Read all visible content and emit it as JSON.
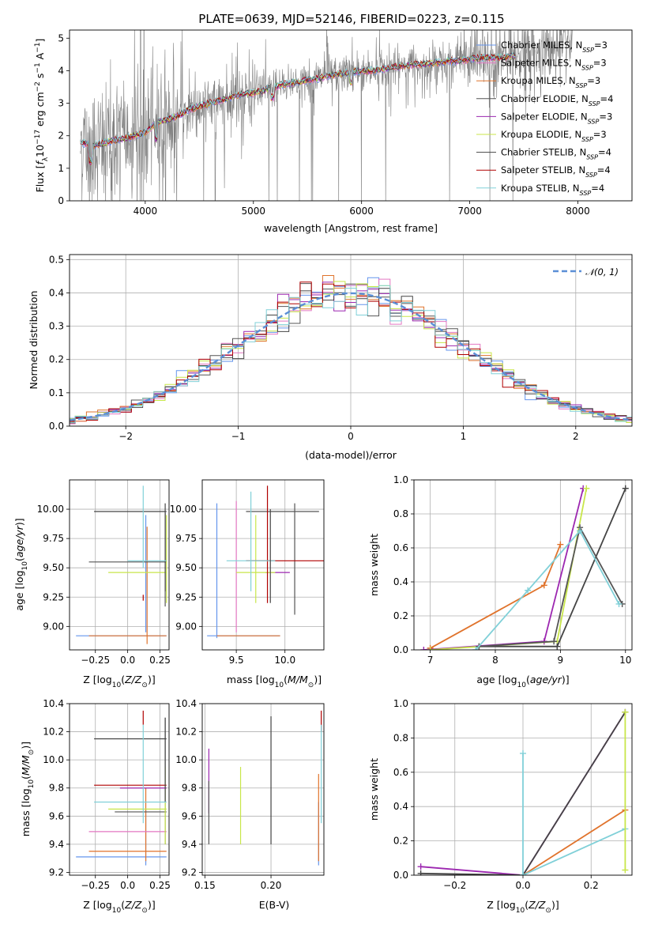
{
  "figure_title": "PLATE=0639, MJD=52146, FIBERID=0223, z=0.115",
  "colors": {
    "chabrier_miles": "#6495ed",
    "salpeter_miles": "#e377c2",
    "kroupa_miles": "#e0732c",
    "chabrier_elodie": "#555555",
    "salpeter_elodie": "#9c27b0",
    "kroupa_elodie": "#c8e64a",
    "chabrier_stelib": "#444444",
    "salpeter_stelib": "#b00000",
    "kroupa_stelib": "#80d0d8",
    "data": "#808080",
    "normal": "#5b8fd6"
  },
  "chart_data": [
    {
      "id": "spectrum",
      "type": "line",
      "title": "PLATE=0639, MJD=52146, FIBERID=0223, z=0.115",
      "xlabel": "wavelength [Angstrom, rest frame]",
      "ylabel": "Flux [f_λ10^-17 erg cm^-2 s^-1 A^-1]",
      "xlim": [
        3300,
        8500
      ],
      "ylim": [
        0,
        5.25
      ],
      "xticks": [
        4000,
        5000,
        6000,
        7000,
        8000
      ],
      "yticks": [
        0,
        1,
        2,
        3,
        4,
        5
      ],
      "legend": [
        "Chabrier MILES, N_SSP=3",
        "Salpeter MILES, N_SSP=3",
        "Kroupa MILES, N_SSP=3",
        "Chabrier ELODIE, N_SSP=4",
        "Salpeter ELODIE, N_SSP=3",
        "Kroupa ELODIE, N_SSP=3",
        "Chabrier STELIB, N_SSP=4",
        "Salpeter STELIB, N_SSP=4",
        "Kroupa STELIB, N_SSP=4"
      ],
      "legend_position": "right",
      "model_continuum": {
        "x": [
          3400,
          3500,
          3600,
          3700,
          3800,
          3900,
          4000,
          4100,
          4200,
          4300,
          4400,
          4500,
          4600,
          4700,
          4800,
          4900,
          5000,
          5100,
          5200,
          5300,
          5400,
          5500,
          5600,
          5700,
          5800,
          5900,
          6000,
          6100,
          6200,
          6300,
          6400,
          6500,
          6600,
          6700,
          6800,
          6900,
          7000,
          7100,
          7200,
          7300,
          7400
        ],
        "y": [
          1.8,
          1.7,
          1.75,
          1.85,
          1.9,
          2.0,
          2.1,
          2.4,
          2.5,
          2.6,
          2.8,
          2.9,
          3.0,
          3.1,
          3.2,
          3.3,
          3.3,
          3.4,
          3.5,
          3.6,
          3.65,
          3.7,
          3.75,
          3.85,
          3.9,
          3.95,
          4.0,
          4.0,
          4.05,
          4.1,
          4.15,
          4.2,
          4.2,
          4.25,
          4.3,
          4.3,
          4.35,
          4.4,
          4.4,
          4.4,
          4.45
        ]
      }
    },
    {
      "id": "residuals",
      "type": "line",
      "xlabel": "(data-model)/error",
      "ylabel": "Normed distribution",
      "xlim": [
        -2.5,
        2.5
      ],
      "ylim": [
        0,
        0.515
      ],
      "xticks": [
        -2,
        -1,
        0,
        1,
        2
      ],
      "yticks": [
        0.0,
        0.1,
        0.2,
        0.3,
        0.4,
        0.5
      ],
      "legend": [
        "𝒩(0, 1)"
      ],
      "legend_position": "upper right",
      "grid": true,
      "normal_curve": {
        "mean": 0,
        "sigma": 1
      },
      "histogram_bin_width": 0.1
    },
    {
      "id": "age_vs_Z",
      "type": "scatter",
      "xlabel": "Z [log10(Z/Z⊙)]",
      "ylabel": "age  [log10(age/yr)]",
      "xlim": [
        -0.45,
        0.32
      ],
      "ylim": [
        8.8,
        10.25
      ],
      "xticks": [
        -0.25,
        0.0,
        0.25
      ],
      "yticks": [
        9.0,
        9.25,
        9.5,
        9.75,
        10.0
      ],
      "grid": true
    },
    {
      "id": "age_vs_mass",
      "type": "scatter",
      "xlabel": "mass [log10(M/M⊙)]",
      "xlim": [
        9.15,
        10.4
      ],
      "ylim": [
        8.8,
        10.25
      ],
      "xticks": [
        9.5,
        10.0
      ],
      "yticks": [
        9.0,
        9.25,
        9.5,
        9.75,
        10.0
      ],
      "grid": true
    },
    {
      "id": "weight_vs_age",
      "type": "line",
      "xlabel": "age  [log10(age/yr)]",
      "ylabel": "mass weight",
      "xlim": [
        6.75,
        10.1
      ],
      "ylim": [
        0,
        1.0
      ],
      "xticks": [
        7,
        8,
        9,
        10
      ],
      "yticks": [
        0.0,
        0.2,
        0.4,
        0.6,
        0.8,
        1.0
      ],
      "grid": true,
      "series": [
        {
          "x": [
            7.0,
            8.75,
            9.0
          ],
          "y": [
            0.01,
            0.38,
            0.62
          ]
        },
        {
          "x": [
            6.9,
            8.75,
            9.35
          ],
          "y": [
            0.0,
            0.05,
            0.95
          ]
        },
        {
          "x": [
            7.0,
            8.95,
            9.4
          ],
          "y": [
            0.0,
            0.05,
            0.95
          ]
        },
        {
          "x": [
            7.75,
            8.95,
            10.0
          ],
          "y": [
            0.02,
            0.02,
            0.95
          ]
        },
        {
          "x": [
            7.75,
            8.9,
            9.3,
            9.95
          ],
          "y": [
            0.02,
            0.05,
            0.72,
            0.27
          ]
        },
        {
          "x": [
            7.7,
            8.5,
            9.3,
            9.9
          ],
          "y": [
            0.0,
            0.35,
            0.7,
            0.27
          ]
        }
      ]
    },
    {
      "id": "mass_vs_Z",
      "type": "scatter",
      "xlabel": "Z [log10(Z/Z⊙)]",
      "ylabel": "mass [log10(M/M⊙)]",
      "xlim": [
        -0.45,
        0.32
      ],
      "ylim": [
        9.18,
        10.4
      ],
      "xticks": [
        -0.25,
        0.0,
        0.25
      ],
      "yticks": [
        9.2,
        9.4,
        9.6,
        9.8,
        10.0,
        10.2,
        10.4
      ],
      "grid": true
    },
    {
      "id": "mass_vs_ebv",
      "type": "scatter",
      "xlabel": "E(B-V)",
      "xlim": [
        0.148,
        0.24
      ],
      "ylim": [
        9.18,
        10.4
      ],
      "xticks": [
        0.15,
        0.2
      ],
      "yticks": [
        9.2,
        9.4,
        9.6,
        9.8,
        10.0,
        10.2,
        10.4
      ],
      "grid": true
    },
    {
      "id": "weight_vs_Z",
      "type": "line",
      "xlabel": "Z [log10(Z/Z⊙)]",
      "ylabel": "mass weight",
      "xlim": [
        -0.32,
        0.32
      ],
      "ylim": [
        0,
        1.0
      ],
      "xticks": [
        -0.2,
        0.0,
        0.2
      ],
      "yticks": [
        0.0,
        0.2,
        0.4,
        0.6,
        0.8,
        1.0
      ],
      "grid": true,
      "series": [
        {
          "x": [
            -0.3,
            0.0,
            0.3
          ],
          "y": [
            0.05,
            0.0,
            0.95
          ]
        },
        {
          "x": [
            -0.3,
            0.0,
            0.3
          ],
          "y": [
            0.01,
            0.0,
            0.95
          ]
        },
        {
          "x": [
            0.0,
            0.3
          ],
          "y": [
            0.0,
            0.38
          ]
        },
        {
          "x": [
            0.0,
            0.3
          ],
          "y": [
            0.0,
            0.27
          ]
        },
        {
          "x": [
            0.3,
            0.3
          ],
          "y": [
            0.03,
            0.95
          ]
        },
        {
          "x": [
            0.0,
            0.0
          ],
          "y": [
            0.0,
            0.71
          ]
        }
      ]
    }
  ]
}
